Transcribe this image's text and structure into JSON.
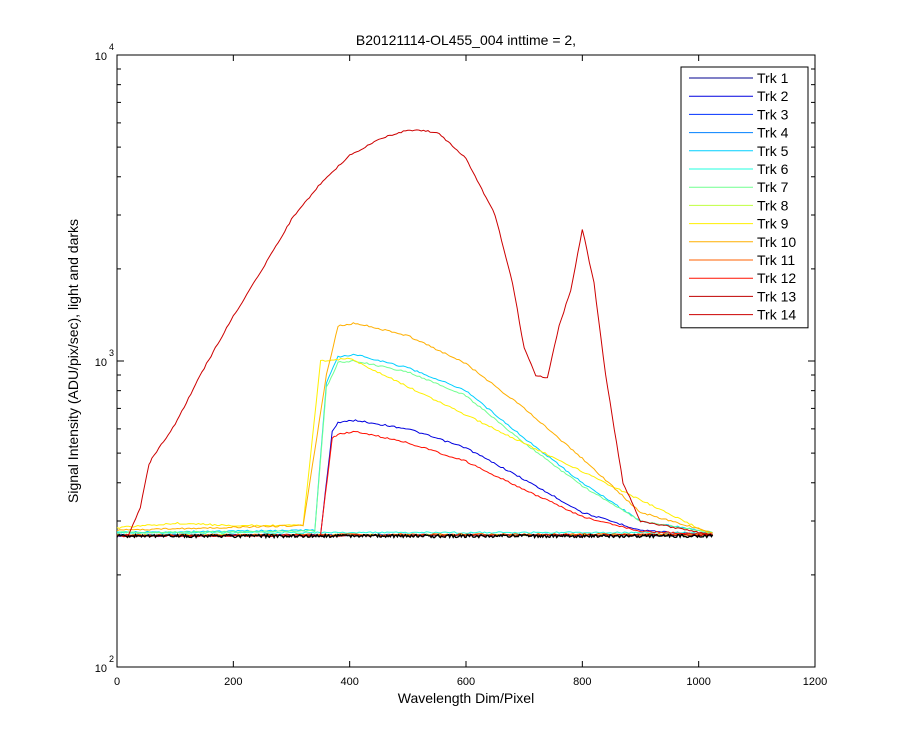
{
  "chart_data": {
    "type": "line",
    "title": "B20121114-OL455_004 inttime = 2,",
    "xlabel": "Wavelength Dim/Pixel",
    "ylabel": "Signal Intensity (ADU/pix/sec), light and darks",
    "xlim": [
      0,
      1200
    ],
    "ylim": [
      100,
      10000
    ],
    "yscale": "log",
    "xticks": [
      "0",
      "200",
      "400",
      "600",
      "800",
      "1000",
      "1200"
    ],
    "yticks": [
      {
        "value": 100,
        "base": "10",
        "exp": "2"
      },
      {
        "value": 1000,
        "base": "10",
        "exp": "3"
      },
      {
        "value": 10000,
        "base": "10",
        "exp": "4"
      }
    ],
    "grid": false,
    "legend_position": "top-right",
    "series": [
      {
        "name": "Trk 1",
        "color": "#00008F",
        "points": [
          [
            0,
            270
          ],
          [
            300,
            270
          ],
          [
            1024,
            270
          ]
        ]
      },
      {
        "name": "Trk 2",
        "color": "#0000DF",
        "points": [
          [
            0,
            268
          ],
          [
            350,
            270
          ],
          [
            370,
            590
          ],
          [
            380,
            630
          ],
          [
            410,
            640
          ],
          [
            500,
            600
          ],
          [
            600,
            520
          ],
          [
            700,
            410
          ],
          [
            800,
            320
          ],
          [
            900,
            280
          ],
          [
            1024,
            270
          ]
        ]
      },
      {
        "name": "Trk 3",
        "color": "#0030FF",
        "points": [
          [
            0,
            270
          ],
          [
            1024,
            270
          ]
        ]
      },
      {
        "name": "Trk 4",
        "color": "#0080FF",
        "points": [
          [
            0,
            270
          ],
          [
            1024,
            270
          ]
        ]
      },
      {
        "name": "Trk 5",
        "color": "#00CFFF",
        "points": [
          [
            0,
            275
          ],
          [
            340,
            280
          ],
          [
            360,
            850
          ],
          [
            380,
            1030
          ],
          [
            410,
            1050
          ],
          [
            500,
            950
          ],
          [
            600,
            800
          ],
          [
            700,
            560
          ],
          [
            800,
            400
          ],
          [
            900,
            300
          ],
          [
            1024,
            275
          ]
        ]
      },
      {
        "name": "Trk 6",
        "color": "#20FFDF",
        "points": [
          [
            0,
            275
          ],
          [
            1024,
            275
          ]
        ]
      },
      {
        "name": "Trk 7",
        "color": "#70FF8F",
        "points": [
          [
            0,
            275
          ],
          [
            340,
            278
          ],
          [
            360,
            820
          ],
          [
            380,
            990
          ],
          [
            410,
            1000
          ],
          [
            500,
            920
          ],
          [
            600,
            770
          ],
          [
            700,
            540
          ],
          [
            800,
            390
          ],
          [
            900,
            300
          ],
          [
            1024,
            275
          ]
        ]
      },
      {
        "name": "Trk 8",
        "color": "#BFFF40",
        "points": [
          [
            0,
            270
          ],
          [
            1024,
            270
          ]
        ]
      },
      {
        "name": "Trk 9",
        "color": "#FFEF00",
        "points": [
          [
            0,
            285
          ],
          [
            100,
            295
          ],
          [
            200,
            290
          ],
          [
            300,
            290
          ],
          [
            320,
            290
          ],
          [
            350,
            1000
          ],
          [
            400,
            1020
          ],
          [
            1024,
            270
          ]
        ]
      },
      {
        "name": "Trk 10",
        "color": "#FFAF00",
        "points": [
          [
            0,
            280
          ],
          [
            320,
            290
          ],
          [
            360,
            900
          ],
          [
            380,
            1300
          ],
          [
            410,
            1330
          ],
          [
            500,
            1210
          ],
          [
            600,
            980
          ],
          [
            700,
            700
          ],
          [
            800,
            480
          ],
          [
            900,
            320
          ],
          [
            1024,
            275
          ]
        ]
      },
      {
        "name": "Trk 11",
        "color": "#FF6000",
        "points": [
          [
            0,
            270
          ],
          [
            1024,
            272
          ]
        ]
      },
      {
        "name": "Trk 12",
        "color": "#FF1000",
        "points": [
          [
            0,
            268
          ],
          [
            350,
            270
          ],
          [
            370,
            560
          ],
          [
            380,
            575
          ],
          [
            410,
            590
          ],
          [
            500,
            540
          ],
          [
            600,
            470
          ],
          [
            700,
            380
          ],
          [
            800,
            310
          ],
          [
            900,
            278
          ],
          [
            1024,
            270
          ]
        ]
      },
      {
        "name": "Trk 13",
        "color": "#BF0000",
        "points": [
          [
            0,
            268
          ],
          [
            1024,
            270
          ]
        ]
      },
      {
        "name": "Trk 14",
        "color": "#CC0000",
        "points": [
          [
            0,
            270
          ],
          [
            20,
            270
          ],
          [
            40,
            330
          ],
          [
            55,
            460
          ],
          [
            60,
            480
          ],
          [
            100,
            620
          ],
          [
            150,
            950
          ],
          [
            200,
            1400
          ],
          [
            250,
            2000
          ],
          [
            300,
            2900
          ],
          [
            350,
            3800
          ],
          [
            400,
            4700
          ],
          [
            450,
            5300
          ],
          [
            500,
            5700
          ],
          [
            550,
            5600
          ],
          [
            600,
            4600
          ],
          [
            650,
            3000
          ],
          [
            680,
            1800
          ],
          [
            700,
            1100
          ],
          [
            720,
            900
          ],
          [
            740,
            880
          ],
          [
            760,
            1300
          ],
          [
            780,
            1700
          ],
          [
            800,
            2700
          ],
          [
            820,
            1800
          ],
          [
            840,
            900
          ],
          [
            870,
            400
          ],
          [
            900,
            300
          ],
          [
            1024,
            270
          ]
        ]
      }
    ]
  }
}
